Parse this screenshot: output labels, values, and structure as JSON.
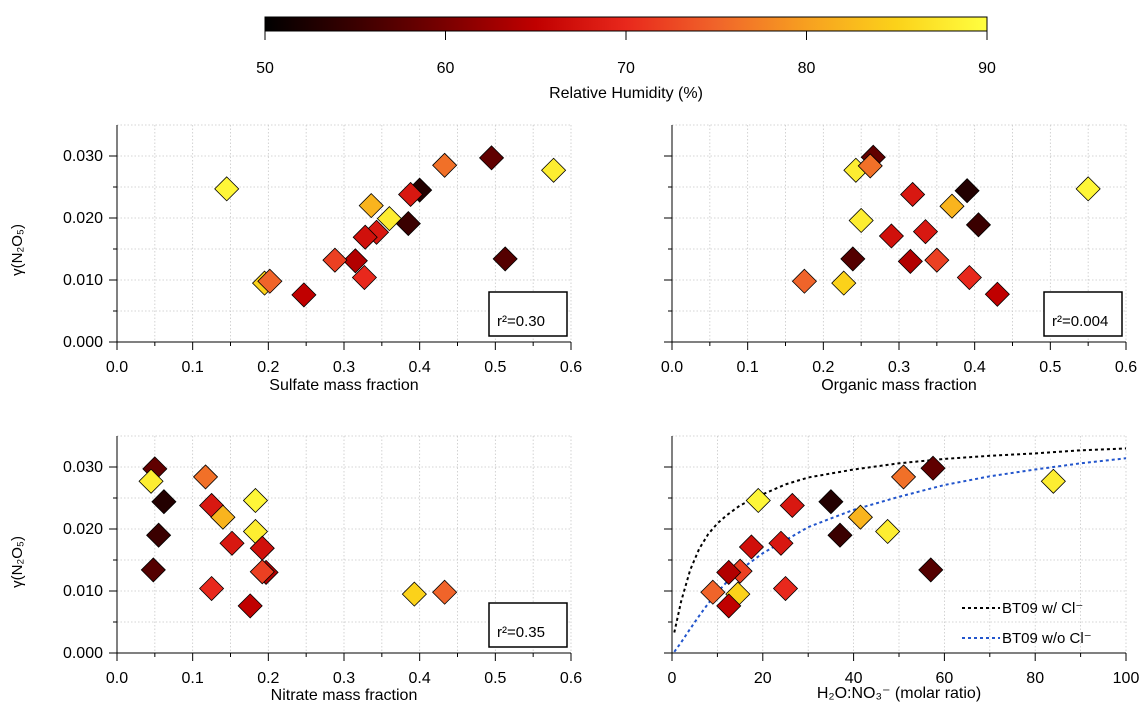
{
  "colorbar": {
    "label": "Relative Humidity (%)",
    "range": [
      50,
      90
    ],
    "ticks": [
      "50",
      "60",
      "70",
      "80",
      "90"
    ],
    "stops": [
      "#000000",
      "#3a0000",
      "#7a0000",
      "#c00000",
      "#e8281c",
      "#f0642a",
      "#f7a020",
      "#fbd21a",
      "#ffff40"
    ]
  },
  "y_axis": {
    "label": "γ(N₂O₅)",
    "range": [
      0,
      0.035
    ],
    "ticks": [
      "0.000",
      "0.010",
      "0.020",
      "0.030"
    ]
  },
  "chart_data": [
    {
      "type": "scatter",
      "xlabel": "Sulfate mass fraction",
      "xlim": [
        0,
        0.6
      ],
      "xticks": [
        "0.0",
        "0.1",
        "0.2",
        "0.3",
        "0.4",
        "0.5",
        "0.6"
      ],
      "annotation": "r²=0.30",
      "points": [
        {
          "x": 0.145,
          "y": 0.0247,
          "rh": 89
        },
        {
          "x": 0.577,
          "y": 0.0277,
          "rh": 88
        },
        {
          "x": 0.495,
          "y": 0.0297,
          "rh": 58
        },
        {
          "x": 0.433,
          "y": 0.0285,
          "rh": 76
        },
        {
          "x": 0.4,
          "y": 0.0245,
          "rh": 53
        },
        {
          "x": 0.388,
          "y": 0.0238,
          "rh": 68
        },
        {
          "x": 0.336,
          "y": 0.022,
          "rh": 82
        },
        {
          "x": 0.36,
          "y": 0.0199,
          "rh": 88
        },
        {
          "x": 0.385,
          "y": 0.0191,
          "rh": 55
        },
        {
          "x": 0.343,
          "y": 0.0177,
          "rh": 68
        },
        {
          "x": 0.328,
          "y": 0.0169,
          "rh": 67
        },
        {
          "x": 0.315,
          "y": 0.0131,
          "rh": 64
        },
        {
          "x": 0.288,
          "y": 0.0132,
          "rh": 72
        },
        {
          "x": 0.327,
          "y": 0.0104,
          "rh": 70
        },
        {
          "x": 0.195,
          "y": 0.0095,
          "rh": 85
        },
        {
          "x": 0.202,
          "y": 0.0098,
          "rh": 75
        },
        {
          "x": 0.247,
          "y": 0.0076,
          "rh": 65
        },
        {
          "x": 0.513,
          "y": 0.0134,
          "rh": 57
        }
      ]
    },
    {
      "type": "scatter",
      "xlabel": "Organic mass fraction",
      "xlim": [
        0,
        0.6
      ],
      "xticks": [
        "0.0",
        "0.1",
        "0.2",
        "0.3",
        "0.4",
        "0.5",
        "0.6"
      ],
      "annotation": "r²=0.004",
      "points": [
        {
          "x": 0.266,
          "y": 0.0298,
          "rh": 58
        },
        {
          "x": 0.243,
          "y": 0.0277,
          "rh": 88
        },
        {
          "x": 0.262,
          "y": 0.0284,
          "rh": 76
        },
        {
          "x": 0.55,
          "y": 0.0247,
          "rh": 89
        },
        {
          "x": 0.39,
          "y": 0.0244,
          "rh": 53
        },
        {
          "x": 0.318,
          "y": 0.0238,
          "rh": 68
        },
        {
          "x": 0.37,
          "y": 0.0219,
          "rh": 82
        },
        {
          "x": 0.25,
          "y": 0.0196,
          "rh": 88
        },
        {
          "x": 0.405,
          "y": 0.0189,
          "rh": 55
        },
        {
          "x": 0.29,
          "y": 0.0171,
          "rh": 67
        },
        {
          "x": 0.335,
          "y": 0.0178,
          "rh": 68
        },
        {
          "x": 0.239,
          "y": 0.0134,
          "rh": 57
        },
        {
          "x": 0.315,
          "y": 0.013,
          "rh": 64
        },
        {
          "x": 0.35,
          "y": 0.0132,
          "rh": 72
        },
        {
          "x": 0.393,
          "y": 0.0104,
          "rh": 70
        },
        {
          "x": 0.175,
          "y": 0.0098,
          "rh": 75
        },
        {
          "x": 0.227,
          "y": 0.0095,
          "rh": 85
        },
        {
          "x": 0.43,
          "y": 0.0077,
          "rh": 65
        }
      ]
    },
    {
      "type": "scatter",
      "xlabel": "Nitrate mass fraction",
      "xlim": [
        0,
        0.6
      ],
      "xticks": [
        "0.0",
        "0.1",
        "0.2",
        "0.3",
        "0.4",
        "0.5",
        "0.6"
      ],
      "annotation": "r²=0.35",
      "points": [
        {
          "x": 0.05,
          "y": 0.0297,
          "rh": 58
        },
        {
          "x": 0.045,
          "y": 0.0277,
          "rh": 88
        },
        {
          "x": 0.062,
          "y": 0.0244,
          "rh": 53
        },
        {
          "x": 0.055,
          "y": 0.019,
          "rh": 55
        },
        {
          "x": 0.048,
          "y": 0.0134,
          "rh": 57
        },
        {
          "x": 0.117,
          "y": 0.0284,
          "rh": 76
        },
        {
          "x": 0.125,
          "y": 0.0238,
          "rh": 68
        },
        {
          "x": 0.14,
          "y": 0.0219,
          "rh": 82
        },
        {
          "x": 0.183,
          "y": 0.0246,
          "rh": 89
        },
        {
          "x": 0.183,
          "y": 0.0196,
          "rh": 88
        },
        {
          "x": 0.152,
          "y": 0.0177,
          "rh": 68
        },
        {
          "x": 0.192,
          "y": 0.0169,
          "rh": 67
        },
        {
          "x": 0.197,
          "y": 0.013,
          "rh": 64
        },
        {
          "x": 0.192,
          "y": 0.0131,
          "rh": 72
        },
        {
          "x": 0.125,
          "y": 0.0104,
          "rh": 70
        },
        {
          "x": 0.176,
          "y": 0.0076,
          "rh": 65
        },
        {
          "x": 0.393,
          "y": 0.0095,
          "rh": 85
        },
        {
          "x": 0.433,
          "y": 0.0098,
          "rh": 75
        }
      ]
    },
    {
      "type": "scatter",
      "xlabel": "H₂O:NO₃⁻ (molar ratio)",
      "xlim": [
        0,
        100
      ],
      "xticks": [
        "0",
        "20",
        "40",
        "60",
        "80",
        "100"
      ],
      "points": [
        {
          "x": 57.5,
          "y": 0.0298,
          "rh": 58
        },
        {
          "x": 51,
          "y": 0.0284,
          "rh": 76
        },
        {
          "x": 84,
          "y": 0.0277,
          "rh": 88
        },
        {
          "x": 19,
          "y": 0.0246,
          "rh": 89
        },
        {
          "x": 35,
          "y": 0.0244,
          "rh": 53
        },
        {
          "x": 26.5,
          "y": 0.0238,
          "rh": 68
        },
        {
          "x": 41.5,
          "y": 0.0219,
          "rh": 82
        },
        {
          "x": 47.5,
          "y": 0.0196,
          "rh": 88
        },
        {
          "x": 37,
          "y": 0.019,
          "rh": 55
        },
        {
          "x": 24,
          "y": 0.0177,
          "rh": 68
        },
        {
          "x": 17.5,
          "y": 0.0171,
          "rh": 67
        },
        {
          "x": 57,
          "y": 0.0134,
          "rh": 57
        },
        {
          "x": 15,
          "y": 0.0132,
          "rh": 72
        },
        {
          "x": 12.5,
          "y": 0.013,
          "rh": 64
        },
        {
          "x": 25,
          "y": 0.0104,
          "rh": 70
        },
        {
          "x": 9,
          "y": 0.0098,
          "rh": 75
        },
        {
          "x": 14.5,
          "y": 0.0095,
          "rh": 85
        },
        {
          "x": 12.5,
          "y": 0.0076,
          "rh": 65
        }
      ],
      "curves": [
        {
          "name": "BT09 w/ Cl⁻",
          "color": "#000000",
          "x": [
            0.5,
            2,
            4,
            6,
            8,
            10,
            12,
            15,
            20,
            25,
            30,
            40,
            50,
            60,
            70,
            80,
            90,
            100
          ],
          "y": [
            0.0033,
            0.0083,
            0.0134,
            0.0168,
            0.0192,
            0.0209,
            0.0222,
            0.0238,
            0.0256,
            0.0272,
            0.0283,
            0.0296,
            0.0306,
            0.0313,
            0.0318,
            0.0322,
            0.0327,
            0.033
          ]
        },
        {
          "name": "BT09 w/o Cl⁻",
          "color": "#2255cc",
          "x": [
            0.5,
            2,
            4,
            6,
            8,
            10,
            12,
            15,
            20,
            25,
            30,
            40,
            50,
            60,
            70,
            80,
            90,
            100
          ],
          "y": [
            0.0002,
            0.0017,
            0.0039,
            0.006,
            0.008,
            0.0098,
            0.0114,
            0.0134,
            0.0161,
            0.0182,
            0.0203,
            0.0231,
            0.0252,
            0.0271,
            0.0285,
            0.0296,
            0.0306,
            0.0314
          ]
        }
      ]
    }
  ]
}
